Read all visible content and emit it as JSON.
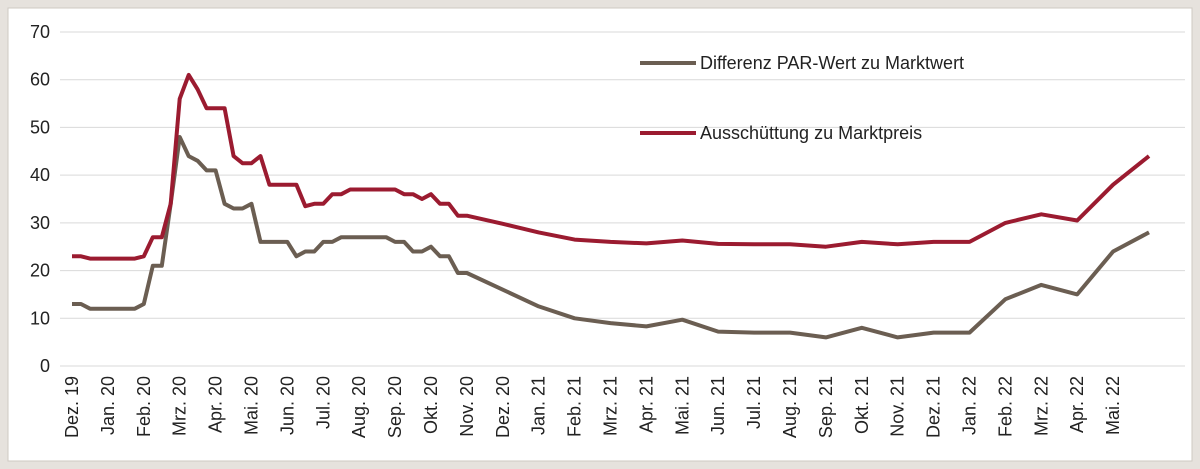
{
  "chart_data": {
    "type": "line",
    "categories": [
      "Dez. 19",
      null,
      null,
      null,
      "Jan. 20",
      null,
      null,
      null,
      "Feb. 20",
      null,
      null,
      null,
      "Mrz. 20",
      null,
      null,
      null,
      "Apr. 20",
      null,
      null,
      null,
      "Mai. 20",
      null,
      null,
      null,
      "Jun. 20",
      null,
      null,
      null,
      "Jul. 20",
      null,
      null,
      null,
      "Aug. 20",
      null,
      null,
      null,
      "Sep. 20",
      null,
      null,
      null,
      "Okt. 20",
      null,
      null,
      null,
      "Nov. 20",
      "Dez. 20",
      "Jan. 21",
      "Feb. 21",
      "Mrz. 21",
      "Apr. 21",
      "Mai. 21",
      "Jun. 21",
      "Jul. 21",
      "Aug. 21",
      "Sep. 21",
      "Okt. 21",
      "Nov. 21",
      "Dez. 21",
      "Jan. 22",
      "Feb. 22",
      "Mrz. 22",
      "Apr. 22",
      "Mai. 22",
      null
    ],
    "series": [
      {
        "name": "Differenz PAR-Wert zu Marktwert",
        "color": "#6b5e52",
        "values": [
          13,
          13,
          12,
          12,
          12,
          12,
          12,
          12,
          13,
          21,
          21,
          34,
          48,
          44,
          43,
          41,
          41,
          34,
          33,
          33,
          34,
          26,
          26,
          26,
          26,
          23,
          24,
          24,
          26,
          26,
          27,
          27,
          27,
          27,
          27,
          27,
          26,
          26,
          24,
          24,
          25,
          23,
          23,
          19.5,
          19.5,
          16,
          12.5,
          10,
          9,
          8.3,
          9.7,
          7.2,
          7,
          7,
          6,
          8,
          6,
          7,
          7,
          14,
          17,
          15,
          24,
          28
        ]
      },
      {
        "name": "Ausschüttung zu Marktpreis",
        "color": "#9b1b30",
        "values": [
          23,
          23,
          22.5,
          22.5,
          22.5,
          22.5,
          22.5,
          22.5,
          23,
          27,
          27,
          34,
          56,
          61,
          58,
          54,
          54,
          54,
          44,
          42.5,
          42.5,
          44,
          38,
          38,
          38,
          38,
          33.5,
          34,
          34,
          36,
          36,
          37,
          37,
          37,
          37,
          37,
          37,
          36,
          36,
          35,
          36,
          34,
          34,
          31.5,
          31.5,
          29.8,
          28,
          26.5,
          26,
          25.7,
          26.3,
          25.6,
          25.5,
          25.5,
          25,
          26,
          25.5,
          26,
          26,
          30,
          31.8,
          30.5,
          38,
          44
        ]
      }
    ],
    "ylim": [
      0,
      70
    ],
    "yticks": [
      0,
      10,
      20,
      30,
      40,
      50,
      60,
      70
    ],
    "grid": true
  }
}
